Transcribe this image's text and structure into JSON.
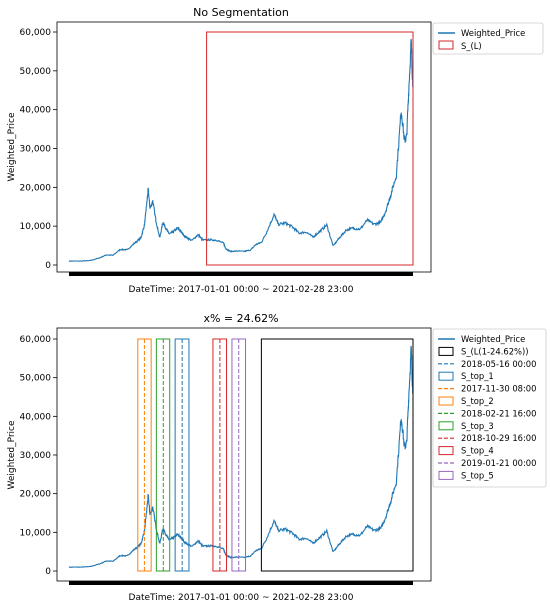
{
  "colors": {
    "price": "#1f77b4",
    "L_top": "#d62728",
    "L_bottom": "#000000",
    "top_1": "#1f77b4",
    "top_2": "#ff7f0e",
    "top_3": "#2ca02c",
    "top_4": "#d62728",
    "top_5": "#9467bd",
    "axis": "#000000",
    "legend_border": "#cccccc"
  },
  "chart_data": [
    {
      "type": "line",
      "title": "No Segmentation",
      "xlabel": "DateTime: 2017-01-01 00:00 ~ 2021-02-28 23:00",
      "ylabel": "Weighted_Price",
      "ylim": [
        0,
        60000
      ],
      "yticks": [
        0,
        10000,
        20000,
        30000,
        40000,
        50000,
        60000
      ],
      "ytick_labels": [
        "0",
        "10,000",
        "20,000",
        "30,000",
        "40,000",
        "50,000",
        "60,000"
      ],
      "xlim": [
        "2017-01-01 00:00",
        "2021-02-28 23:00"
      ],
      "series": [
        {
          "name": "Weighted_Price",
          "x": [
            "2017-01-01",
            "2017-02-15",
            "2017-04-01",
            "2017-05-15",
            "2017-06-15",
            "2017-07-15",
            "2017-08-15",
            "2017-09-15",
            "2017-10-15",
            "2017-11-15",
            "2017-12-01",
            "2017-12-10",
            "2017-12-17",
            "2017-12-25",
            "2018-01-06",
            "2018-01-20",
            "2018-02-06",
            "2018-02-20",
            "2018-03-05",
            "2018-03-20",
            "2018-04-06",
            "2018-04-25",
            "2018-05-10",
            "2018-06-01",
            "2018-06-28",
            "2018-07-25",
            "2018-08-15",
            "2018-09-15",
            "2018-10-15",
            "2018-11-15",
            "2018-11-25",
            "2018-12-15",
            "2019-01-15",
            "2019-02-15",
            "2019-03-15",
            "2019-04-05",
            "2019-05-01",
            "2019-05-25",
            "2019-06-26",
            "2019-07-15",
            "2019-08-15",
            "2019-09-15",
            "2019-10-15",
            "2019-11-15",
            "2019-12-15",
            "2020-01-15",
            "2020-02-14",
            "2020-03-13",
            "2020-04-10",
            "2020-05-10",
            "2020-06-10",
            "2020-07-10",
            "2020-08-10",
            "2020-09-10",
            "2020-10-10",
            "2020-11-01",
            "2020-11-25",
            "2020-12-17",
            "2021-01-08",
            "2021-01-22",
            "2021-02-01",
            "2021-02-10",
            "2021-02-21",
            "2021-02-28"
          ],
          "y": [
            1000,
            1000,
            1100,
            1800,
            2600,
            2500,
            4000,
            3900,
            5500,
            7000,
            10500,
            15500,
            19500,
            14500,
            16500,
            11500,
            7000,
            11000,
            9500,
            8000,
            8500,
            9500,
            8600,
            7200,
            6300,
            7800,
            6400,
            6500,
            6400,
            5600,
            4200,
            3500,
            3600,
            3500,
            3900,
            5200,
            5800,
            8500,
            13000,
            10500,
            10800,
            9800,
            8200,
            8500,
            7200,
            8700,
            10300,
            4900,
            7000,
            9000,
            9500,
            9200,
            11500,
            10500,
            11000,
            14000,
            18500,
            23000,
            40000,
            32000,
            33000,
            45000,
            57500,
            46000
          ]
        }
      ],
      "segments": [
        {
          "name": "S_(L)",
          "start": "2018-09-01 00:00",
          "end": "2021-02-28 23:00",
          "style": "solid",
          "color_key": "L_top"
        }
      ],
      "legend": [
        "Weighted_Price",
        "S_(L)"
      ],
      "legend_placement": "outside-right"
    },
    {
      "type": "line",
      "title": "x% = 24.62%",
      "xlabel": "DateTime: 2017-01-01 00:00 ~ 2021-02-28 23:00",
      "ylabel": "Weighted_Price",
      "ylim": [
        0,
        60000
      ],
      "yticks": [
        0,
        10000,
        20000,
        30000,
        40000,
        50000,
        60000
      ],
      "ytick_labels": [
        "0",
        "10,000",
        "20,000",
        "30,000",
        "40,000",
        "50,000",
        "60,000"
      ],
      "xlim": [
        "2017-01-01 00:00",
        "2021-02-28 23:00"
      ],
      "series_ref": "same as first chart",
      "segments": [
        {
          "name": "S_(L(1-24.62%))",
          "start": "2019-05-01 00:00",
          "end": "2021-02-28 23:00",
          "style": "solid",
          "color_key": "L_bottom"
        },
        {
          "name": "S_top_1",
          "start": "2018-04-15",
          "end": "2018-06-15",
          "marker": "2018-05-16 00:00",
          "marker_label": "2018-05-16 00:00",
          "color_key": "top_1"
        },
        {
          "name": "S_top_2",
          "start": "2017-11-01",
          "end": "2017-12-30",
          "marker": "2017-11-30 08:00",
          "marker_label": "2017-11-30 08:00",
          "color_key": "top_2"
        },
        {
          "name": "S_top_3",
          "start": "2018-01-22",
          "end": "2018-03-22",
          "marker": "2018-02-21 16:00",
          "marker_label": "2018-02-21 16:00",
          "color_key": "top_3"
        },
        {
          "name": "S_top_4",
          "start": "2018-09-29",
          "end": "2018-11-28",
          "marker": "2018-10-29 16:00",
          "marker_label": "2018-10-29 16:00",
          "color_key": "top_4"
        },
        {
          "name": "S_top_5",
          "start": "2018-12-22",
          "end": "2019-02-20",
          "marker": "2019-01-21 00:00",
          "marker_label": "2019-01-21 00:00",
          "color_key": "top_5"
        }
      ],
      "legend": [
        "Weighted_Price",
        "S_(L(1-24.62%))",
        "2018-05-16 00:00",
        "S_top_1",
        "2017-11-30 08:00",
        "S_top_2",
        "2018-02-21 16:00",
        "S_top_3",
        "2018-10-29 16:00",
        "S_top_4",
        "2019-01-21 00:00",
        "S_top_5"
      ],
      "legend_placement": "outside-right"
    }
  ]
}
